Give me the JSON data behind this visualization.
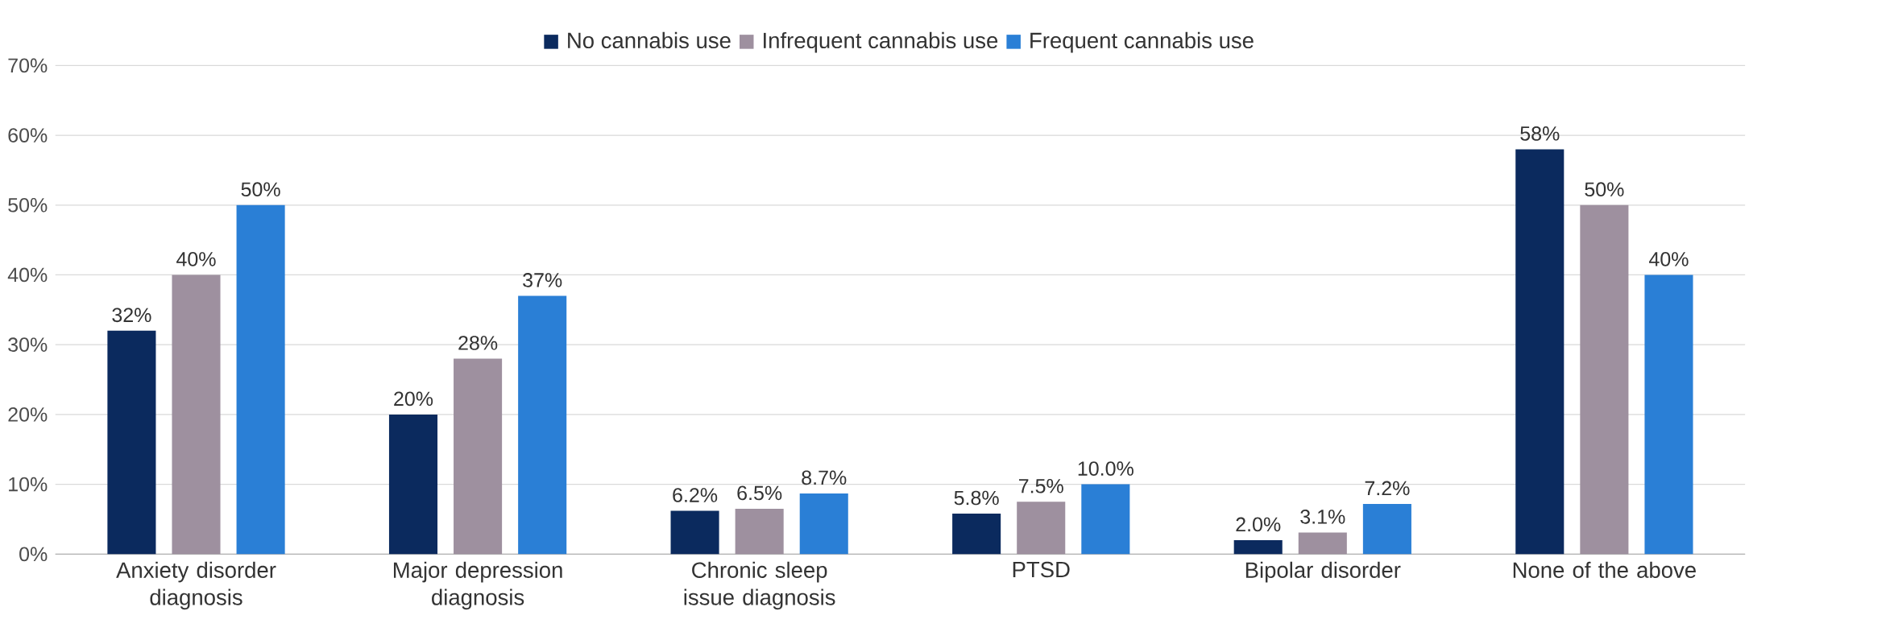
{
  "chart_data": {
    "type": "bar",
    "categories": [
      "Anxiety disorder diagnosis",
      "Major depression diagnosis",
      "Chronic sleep issue diagnosis",
      "PTSD",
      "Bipolar disorder",
      "None of the above"
    ],
    "series": [
      {
        "name": "No cannabis use",
        "color": "#0b2a5e",
        "values": [
          32,
          20,
          6.2,
          5.8,
          2.0,
          58
        ],
        "value_labels": [
          "32%",
          "20%",
          "6.2%",
          "5.8%",
          "2.0%",
          "58%"
        ]
      },
      {
        "name": "Infrequent cannabis use",
        "color": "#9e909f",
        "values": [
          40,
          28,
          6.5,
          7.5,
          3.1,
          50
        ],
        "value_labels": [
          "40%",
          "28%",
          "6.5%",
          "7.5%",
          "3.1%",
          "50%"
        ]
      },
      {
        "name": "Frequent cannabis use",
        "color": "#2a7fd6",
        "values": [
          50,
          37,
          8.7,
          10.0,
          7.2,
          40
        ],
        "value_labels": [
          "50%",
          "37%",
          "8.7%",
          "10.0%",
          "7.2%",
          "40%"
        ]
      }
    ],
    "ylim": [
      0,
      70
    ],
    "yticks": [
      {
        "value": 0,
        "label": "0%"
      },
      {
        "value": 10,
        "label": "10%"
      },
      {
        "value": 20,
        "label": "20%"
      },
      {
        "value": 30,
        "label": "30%"
      },
      {
        "value": 40,
        "label": "40%"
      },
      {
        "value": 50,
        "label": "50%"
      },
      {
        "value": 60,
        "label": "60%"
      },
      {
        "value": 70,
        "label": "70%"
      }
    ],
    "grid": "y",
    "legend": "top"
  }
}
